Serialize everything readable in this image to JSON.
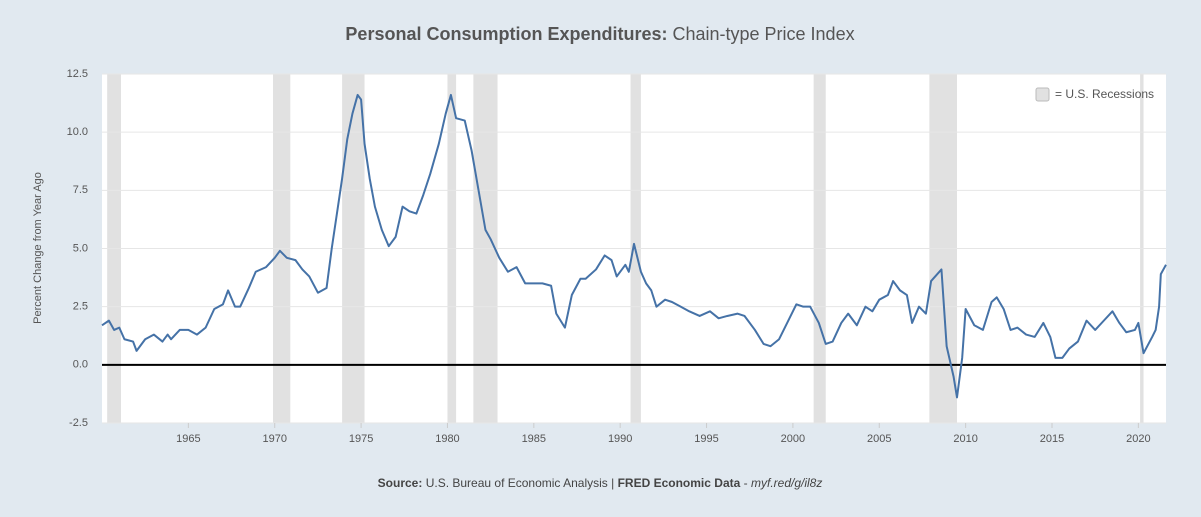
{
  "chart_data": {
    "type": "line",
    "title": {
      "main": "Personal Consumption Expenditures:",
      "sub": "Chain-type Price Index"
    },
    "y_label": "Percent Change from Year Ago",
    "legend": "= U.S. Recessions",
    "legend_position": "top-right",
    "grid": true,
    "zero_line": true,
    "xlim": [
      1960,
      2021.6
    ],
    "xticks": [
      1965,
      1970,
      1975,
      1980,
      1985,
      1990,
      1995,
      2000,
      2005,
      2010,
      2015,
      2020
    ],
    "ylim": [
      -2.5,
      12.5
    ],
    "yticks": [
      {
        "value": -2.5,
        "label": "-2.5"
      },
      {
        "value": 0,
        "label": "0.0"
      },
      2.5,
      {
        "value": 5,
        "label": "5.0"
      },
      7.5,
      {
        "value": 10,
        "label": "10.0"
      },
      12.5
    ],
    "recession_color": "#e1e1e1",
    "recessions": [
      [
        1960.3,
        1961.1
      ],
      [
        1969.9,
        1970.9
      ],
      [
        1973.9,
        1975.2
      ],
      [
        1980.0,
        1980.5
      ],
      [
        1981.5,
        1982.9
      ],
      [
        1990.6,
        1991.2
      ],
      [
        2001.2,
        2001.9
      ],
      [
        2007.9,
        2009.5
      ],
      [
        2020.1,
        2020.3
      ]
    ],
    "x": [
      1960.0,
      1960.4,
      1960.7,
      1961.0,
      1961.3,
      1961.8,
      1962.0,
      1962.5,
      1963.0,
      1963.5,
      1963.8,
      1964.0,
      1964.5,
      1965.0,
      1965.5,
      1966.0,
      1966.5,
      1967.0,
      1967.3,
      1967.7,
      1968.0,
      1968.5,
      1968.9,
      1969.5,
      1970.0,
      1970.3,
      1970.7,
      1971.2,
      1971.6,
      1972.0,
      1972.5,
      1973.0,
      1973.3,
      1973.6,
      1973.9,
      1974.2,
      1974.5,
      1974.8,
      1975.0,
      1975.2,
      1975.5,
      1975.8,
      1976.2,
      1976.6,
      1977.0,
      1977.4,
      1977.8,
      1978.2,
      1978.6,
      1979.0,
      1979.5,
      1979.9,
      1980.2,
      1980.5,
      1981.0,
      1981.4,
      1981.8,
      1982.2,
      1982.5,
      1983.0,
      1983.5,
      1984.0,
      1984.5,
      1985.0,
      1985.5,
      1986.0,
      1986.3,
      1986.8,
      1987.2,
      1987.7,
      1988.0,
      1988.6,
      1989.1,
      1989.5,
      1989.8,
      1990.3,
      1990.5,
      1990.8,
      1991.2,
      1991.5,
      1991.8,
      1992.1,
      1992.6,
      1993.0,
      1993.5,
      1994.0,
      1994.6,
      1995.2,
      1995.7,
      1996.2,
      1996.8,
      1997.2,
      1997.8,
      1998.3,
      1998.7,
      1999.2,
      1999.8,
      2000.2,
      2000.6,
      2001.0,
      2001.5,
      2001.9,
      2002.3,
      2002.8,
      2003.2,
      2003.7,
      2004.2,
      2004.6,
      2005.0,
      2005.5,
      2005.8,
      2006.2,
      2006.6,
      2006.9,
      2007.3,
      2007.7,
      2008.0,
      2008.6,
      2008.9,
      2009.3,
      2009.5,
      2009.8,
      2010.0,
      2010.5,
      2011.0,
      2011.5,
      2011.8,
      2012.2,
      2012.6,
      2013.0,
      2013.5,
      2014.0,
      2014.5,
      2014.9,
      2015.2,
      2015.6,
      2016.0,
      2016.5,
      2017.0,
      2017.5,
      2018.0,
      2018.5,
      2018.9,
      2019.3,
      2019.8,
      2020.0,
      2020.3,
      2020.8,
      2021.0,
      2021.2,
      2021.3,
      2021.6
    ],
    "series": [
      {
        "name": "Personal Consumption Expenditures: Chain-type Price Index",
        "color": "#4572a7",
        "values": [
          1.7,
          1.9,
          1.5,
          1.6,
          1.1,
          1.0,
          0.6,
          1.1,
          1.3,
          1.0,
          1.3,
          1.1,
          1.5,
          1.5,
          1.3,
          1.6,
          2.4,
          2.6,
          3.2,
          2.5,
          2.5,
          3.3,
          4.0,
          4.2,
          4.6,
          4.9,
          4.6,
          4.5,
          4.1,
          3.8,
          3.1,
          3.3,
          5.0,
          6.5,
          8.0,
          9.7,
          10.8,
          11.6,
          11.4,
          9.5,
          8.0,
          6.8,
          5.8,
          5.1,
          5.5,
          6.8,
          6.6,
          6.5,
          7.3,
          8.2,
          9.5,
          10.8,
          11.6,
          10.6,
          10.5,
          9.2,
          7.5,
          5.8,
          5.4,
          4.6,
          4.0,
          4.2,
          3.5,
          3.5,
          3.5,
          3.4,
          2.2,
          1.6,
          3.0,
          3.7,
          3.7,
          4.1,
          4.7,
          4.5,
          3.8,
          4.3,
          4.0,
          5.2,
          4.0,
          3.5,
          3.2,
          2.5,
          2.8,
          2.7,
          2.5,
          2.3,
          2.1,
          2.3,
          2.0,
          2.1,
          2.2,
          2.1,
          1.5,
          0.9,
          0.8,
          1.1,
          2.0,
          2.6,
          2.5,
          2.5,
          1.8,
          0.9,
          1.0,
          1.8,
          2.2,
          1.7,
          2.5,
          2.3,
          2.8,
          3.0,
          3.6,
          3.2,
          3.0,
          1.8,
          2.5,
          2.2,
          3.6,
          4.1,
          0.8,
          -0.5,
          -1.4,
          0.3,
          2.4,
          1.7,
          1.5,
          2.7,
          2.9,
          2.4,
          1.5,
          1.6,
          1.3,
          1.2,
          1.8,
          1.2,
          0.3,
          0.3,
          0.7,
          1.0,
          1.9,
          1.5,
          1.9,
          2.3,
          1.8,
          1.4,
          1.5,
          1.8,
          0.5,
          1.2,
          1.5,
          2.5,
          3.9,
          4.3
        ]
      }
    ]
  },
  "footer": {
    "source_label": "Source:",
    "source": "U.S. Bureau of Economic Analysis",
    "separator": "|",
    "brand": "FRED Economic Data",
    "dash": "-",
    "link": "myf.red/g/il8z"
  }
}
